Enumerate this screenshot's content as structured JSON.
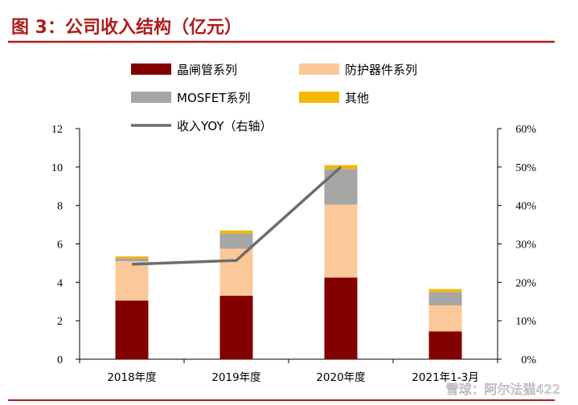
{
  "figure_title": "图 3：公司收入结构（亿元）",
  "watermark": "雪球：阿尔法猫422",
  "colors": {
    "title": "#B01C1C",
    "rule": "#B01C1C",
    "series": [
      "#820000",
      "#FBC89A",
      "#A6A6A6",
      "#F5B800"
    ],
    "line": "#6D6D6D",
    "axis": "#000000"
  },
  "chart_data": {
    "type": "bar",
    "stacked": true,
    "title": "图 3：公司收入结构（亿元）",
    "categories": [
      "2018年度",
      "2019年度",
      "2020年度",
      "2021年1-3月"
    ],
    "series": [
      {
        "name": "晶闸管系列",
        "values": [
          3.05,
          3.3,
          4.25,
          1.45
        ]
      },
      {
        "name": "防护器件系列",
        "values": [
          2.05,
          2.45,
          3.8,
          1.35
        ]
      },
      {
        "name": "MOSFET系列",
        "values": [
          0.15,
          0.8,
          1.85,
          0.7
        ]
      },
      {
        "name": "其他",
        "values": [
          0.1,
          0.15,
          0.2,
          0.15
        ]
      }
    ],
    "line_series": {
      "name": "收入YOY（右轴）",
      "values": [
        0.247,
        0.257,
        0.5,
        null
      ]
    },
    "ylim": [
      0,
      12
    ],
    "yticks": [
      "0",
      "2",
      "4",
      "6",
      "8",
      "10",
      "12"
    ],
    "y2lim": [
      0,
      0.6
    ],
    "y2ticks": [
      "0%",
      "10%",
      "20%",
      "30%",
      "40%",
      "50%",
      "60%"
    ],
    "legend": [
      "晶闸管系列",
      "防护器件系列",
      "MOSFET系列",
      "其他",
      "收入YOY（右轴）"
    ],
    "legend_position": "top"
  }
}
